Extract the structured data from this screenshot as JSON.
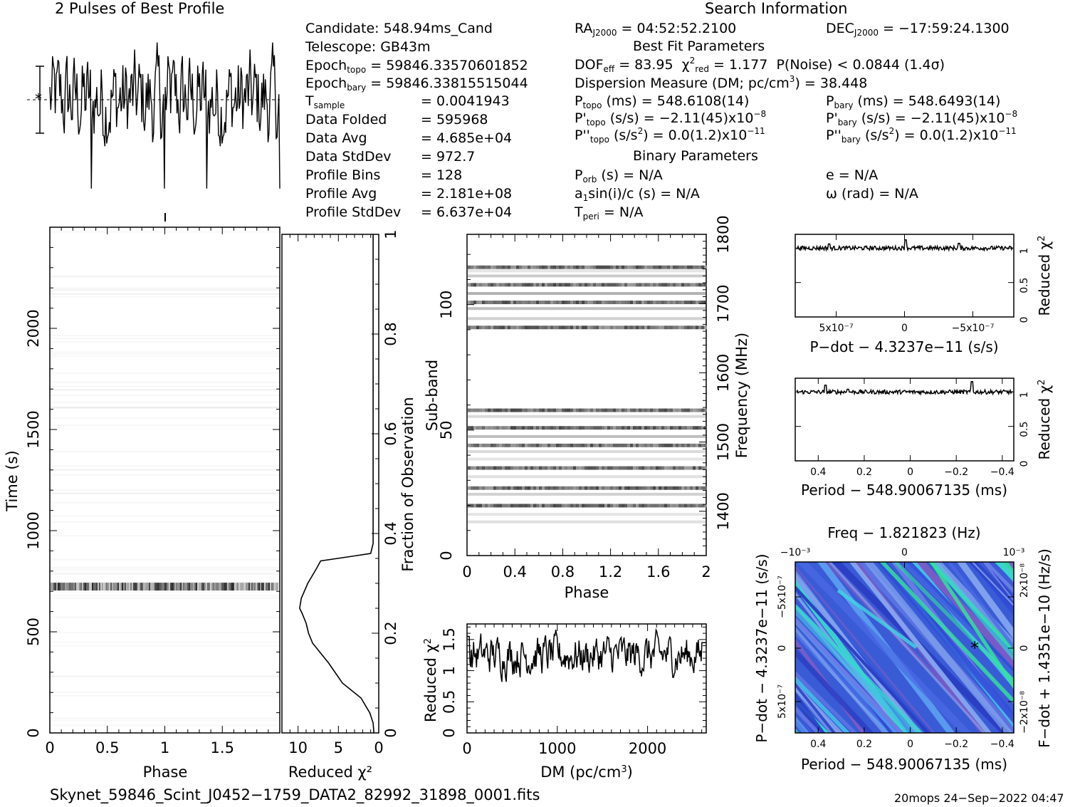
{
  "header": {
    "profile_title": "2 Pulses of Best Profile",
    "search_title": "Search Information",
    "best_fit_title": "Best Fit Parameters",
    "binary_title": "Binary Parameters"
  },
  "candidate_info": {
    "candidate": "Candidate:  548.94ms_Cand",
    "telescope": "Telescope:  GB43m",
    "epoch_topo_label": "Epoch",
    "epoch_topo_sub": "topo",
    "epoch_topo_val": " = 59846.33570601852",
    "epoch_bary_label": "Epoch",
    "epoch_bary_sub": "bary",
    "epoch_bary_val": " = 59846.33815515044",
    "tsample_label": "T",
    "tsample_sub": "sample",
    "tsample_val": "=   0.0041943",
    "data_folded_label": "Data Folded",
    "data_folded_val": "=   595968",
    "data_avg_label": "Data Avg",
    "data_avg_val": "=   4.685e+04",
    "data_std_label": "Data StdDev",
    "data_std_val": "=   972.7",
    "prof_bins_label": "Profile Bins",
    "prof_bins_val": "=   128",
    "prof_avg_label": "Profile Avg",
    "prof_avg_val": "=   2.181e+08",
    "prof_std_label": "Profile StdDev",
    "prof_std_val": "=   6.637e+04"
  },
  "search_info": {
    "ra_label": "RA",
    "ra_sub": "J2000",
    "ra_val": " = 04:52:52.2100",
    "dec_label": "DEC",
    "dec_sub": "J2000",
    "dec_val": " = −17:59:24.1300",
    "dof_label": "DOF",
    "dof_sub": "eff",
    "dof_val": " = 83.95",
    "chi_label": "χ",
    "chi_sub": "red",
    "chi_val": " = 1.177",
    "pnoise": "P(Noise) < 0.0844   (1.4σ)",
    "dm_text": "Dispersion Measure (DM; pc/cm",
    "dm_val": ") = 38.448",
    "ptopo_label": "P",
    "ptopo_sub": "topo",
    "ptopo_val": " (ms) =  548.6108(14)",
    "pbary_label": "P",
    "pbary_sub": "bary",
    "pbary_val": " (ms) =  548.6493(14)",
    "pdtopo_label": "P'",
    "pdtopo_sub": "topo",
    "pdtopo_val": " (s/s) = −2.11(45)x10",
    "pdtopo_exp": "−8",
    "pdbary_label": "P'",
    "pdbary_sub": "bary",
    "pdbary_val": " (s/s) = −2.11(45)x10",
    "pdbary_exp": "−8",
    "pddtopo_label": "P''",
    "pddtopo_sub": "topo",
    "pddtopo_val": " (s/s",
    "pddtopo_val2": ") = 0.0(1.2)x10",
    "pddtopo_exp": "−11",
    "pddbary_label": "P''",
    "pddbary_sub": "bary",
    "pddbary_val": " (s/s",
    "pddbary_val2": ") = 0.0(1.2)x10",
    "pddbary_exp": "−11",
    "porb_label": "P",
    "porb_sub": "orb",
    "porb_val": " (s) = N/A",
    "ecc": "e = N/A",
    "asini_label": "a",
    "asini_sub": "1",
    "asini_val": "sin(i)/c (s) = N/A",
    "omega": "ω (rad) = N/A",
    "tperi_label": "T",
    "tperi_sub": "peri",
    "tperi_val": " = N/A"
  },
  "footer": {
    "filename": "Skynet_59846_Scint_J0452−1759_DATA2_82992_31898_0001.fits",
    "stamp": "20mops 24−Sep−2022 04:47"
  },
  "chart_data": [
    {
      "id": "pulse_profile",
      "type": "line",
      "title": "2 Pulses of Best Profile",
      "x_range": [
        0,
        2
      ],
      "note": "noisy two-pulse folded profile, no significant peak"
    },
    {
      "id": "time_phase",
      "type": "heatmap",
      "xlabel": "Phase",
      "ylabel": "Time (s)",
      "xlim": [
        0,
        2
      ],
      "ylim": [
        0,
        2500
      ],
      "x_ticks": [
        "0",
        "0.5",
        "1",
        "1.5"
      ],
      "y_ticks": [
        "0",
        "500",
        "1000",
        "1500",
        "2000"
      ],
      "bright_band_time_s": 725
    },
    {
      "id": "reduced_chi2_vs_fraction",
      "type": "line",
      "xlabel": "Reduced χ²",
      "ylabel": "Fraction of Observation",
      "xlim": [
        12,
        0
      ],
      "ylim": [
        0,
        1
      ],
      "x_ticks": [
        "10",
        "5",
        "0"
      ],
      "y_ticks": [
        "0",
        "0.2",
        "0.4",
        "0.6",
        "0.8",
        "1"
      ],
      "points": [
        [
          0.6,
          0.0
        ],
        [
          0.7,
          0.02
        ],
        [
          1.1,
          0.04
        ],
        [
          2.2,
          0.07
        ],
        [
          4.5,
          0.1
        ],
        [
          6.2,
          0.14
        ],
        [
          8.2,
          0.18
        ],
        [
          8.7,
          0.2
        ],
        [
          9.0,
          0.22
        ],
        [
          9.5,
          0.24
        ],
        [
          9.8,
          0.25
        ],
        [
          9.6,
          0.27
        ],
        [
          8.8,
          0.3
        ],
        [
          7.7,
          0.33
        ],
        [
          7.2,
          0.345
        ],
        [
          3.0,
          0.355
        ],
        [
          1.0,
          0.36
        ],
        [
          0.7,
          0.38
        ],
        [
          0.7,
          1.0
        ]
      ]
    },
    {
      "id": "subband_phase",
      "type": "heatmap",
      "xlabel": "Phase",
      "ylabel": "Sub-band",
      "y2label": "Frequency (MHz)",
      "xlim": [
        0,
        2
      ],
      "ylim": [
        0,
        128
      ],
      "x_ticks": [
        "0",
        "0.4",
        "0.8",
        "1.2",
        "1.6",
        "2"
      ],
      "y_ticks": [
        "0",
        "50",
        "100"
      ],
      "y2_ticks": [
        "1400",
        "1500",
        "1600",
        "1700",
        "1800"
      ],
      "dark_subbands": [
        20,
        27,
        35,
        44,
        51,
        58,
        91,
        101,
        108,
        115
      ]
    },
    {
      "id": "dm_chi2",
      "type": "line",
      "xlabel": "DM (pc/cm³)",
      "ylabel": "Reduced χ²",
      "xlim": [
        0,
        2650
      ],
      "ylim": [
        0,
        1.75
      ],
      "x_ticks": [
        "0",
        "1000",
        "2000"
      ],
      "y_ticks": [
        "0",
        "0.5",
        "1",
        "1.5"
      ],
      "mean": 1.25,
      "spread": 0.18
    },
    {
      "id": "pdot_chi2",
      "type": "line",
      "xlabel": "P−dot − 4.3237e−11 (s/s)",
      "ylabel": "Reduced χ²",
      "xlim": [
        8e-07,
        -8e-07
      ],
      "ylim": [
        0,
        1.2
      ],
      "x_ticks": [
        "5x10⁻⁷",
        "0",
        "−5x10⁻⁷"
      ],
      "y_ticks": [
        "0",
        "0.5",
        "1"
      ],
      "level": 1.0
    },
    {
      "id": "period_chi2",
      "type": "line",
      "xlabel": "Period − 548.90067135 (ms)",
      "ylabel": "Reduced χ²",
      "xlim": [
        0.5,
        -0.45
      ],
      "ylim": [
        0,
        1.2
      ],
      "x_ticks": [
        "0.4",
        "0.2",
        "0",
        "−0.2",
        "−0.4"
      ],
      "y_ticks": [
        "0",
        "0.5",
        "1"
      ],
      "level": 1.0
    },
    {
      "id": "p_pdot_plane",
      "type": "heatmap",
      "title": "Freq − 1.821823 (Hz)",
      "xlabel": "Period − 548.90067135 (ms)",
      "ylabel": "P−dot − 4.3237e−11 (s/s)",
      "y2label": "F−dot + 1.4351e−10 (Hz/s)",
      "xlim": [
        0.5,
        -0.45
      ],
      "x_ticks": [
        "0.4",
        "0.2",
        "0",
        "−0.2",
        "−0.4"
      ],
      "top_ticks": [
        "−10⁻³",
        "0",
        "10⁻³"
      ],
      "y_ticks": [
        "−5x10⁻⁷",
        "0",
        "5x10⁻⁷"
      ],
      "y2_ticks": [
        "2x10⁻⁸",
        "0",
        "−2x10⁻⁸"
      ],
      "best_point": [
        -0.28,
        0
      ]
    }
  ]
}
